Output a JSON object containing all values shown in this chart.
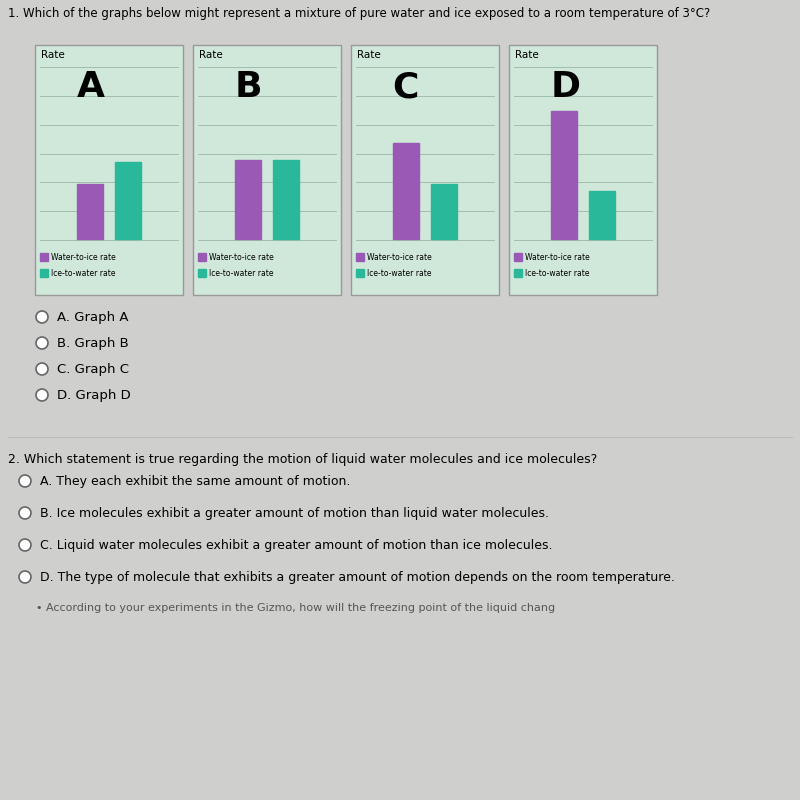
{
  "question1": "1. Which of the graphs below might represent a mixture of pure water and ice exposed to a room temperature of 3°C?",
  "question2": "2. Which statement is true regarding the motion of liquid water molecules and ice molecules?",
  "graphs": [
    {
      "label": "A",
      "water_to_ice": 0.32,
      "ice_to_water": 0.45
    },
    {
      "label": "B",
      "water_to_ice": 0.46,
      "ice_to_water": 0.46
    },
    {
      "label": "C",
      "water_to_ice": 0.56,
      "ice_to_water": 0.32
    },
    {
      "label": "D",
      "water_to_ice": 0.75,
      "ice_to_water": 0.28
    }
  ],
  "bar_colors": [
    "#9b59b6",
    "#2ab89a"
  ],
  "legend_labels": [
    "Water-to-ice rate",
    "Ice-to-water rate"
  ],
  "bg_color": "#cfd0ce",
  "panel_bg": "#d0e8da",
  "q1_options": [
    "A. Graph A",
    "B. Graph B",
    "C. Graph C",
    "D. Graph D"
  ],
  "q2_options": [
    "A. They each exhibit the same amount of motion.",
    "B. Ice molecules exhibit a greater amount of motion than liquid water molecules.",
    "C. Liquid water molecules exhibit a greater amount of motion than ice molecules.",
    "D. The type of molecule that exhibits a greater amount of motion depends on the room temperature."
  ],
  "bottom_text": "According to your experiments in the Gizmo, how will the freezing point of the liquid chang"
}
